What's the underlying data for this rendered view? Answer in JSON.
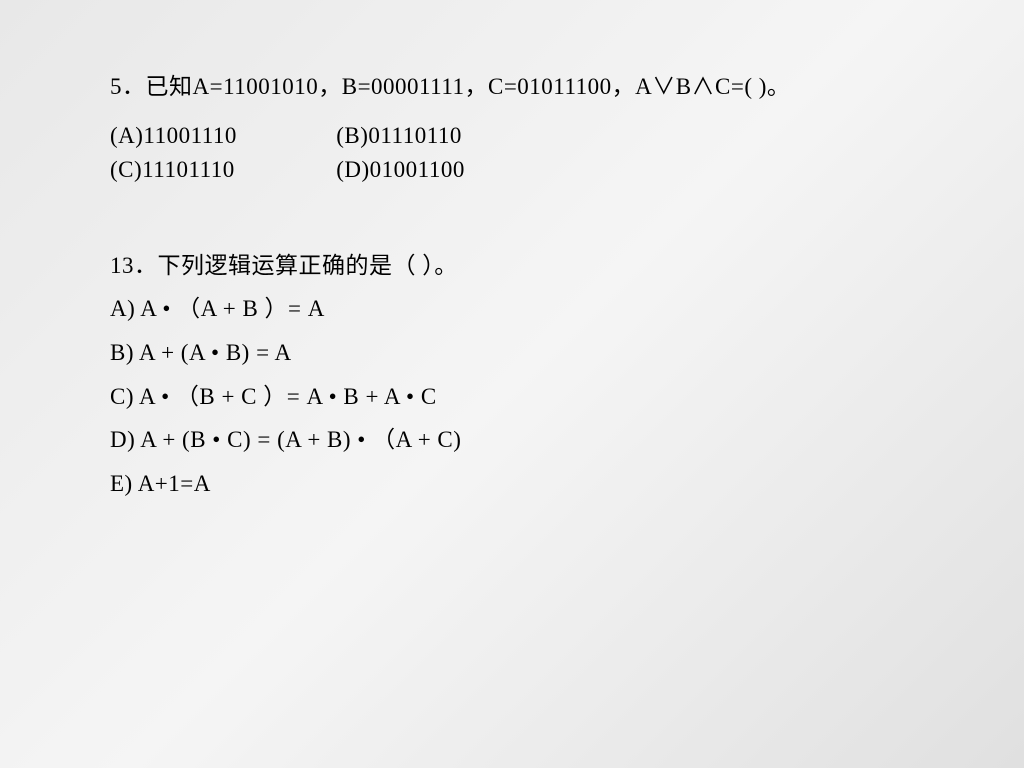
{
  "background": {
    "gradient_start": "#e8e8e8",
    "gradient_mid": "#f5f5f5",
    "gradient_end": "#e0e0e0"
  },
  "typography": {
    "font_family": "SimSun",
    "font_size_pt": 17,
    "color": "#000000",
    "line_height": 1.5
  },
  "q5": {
    "prompt": "5．已知A=11001010，B=00001111，C=01011100，A∨B∧C=(   )。",
    "options": {
      "A": "(A)11001110",
      "B": "(B)01110110",
      "C": "(C)11101110",
      "D": "(D)01001100"
    }
  },
  "q13": {
    "prompt": "13．下列逻辑运算正确的是（   ）。",
    "options": {
      "A": "A) A • （A + B ）= A",
      "B": "B) A + (A • B) = A",
      "C": "C) A • （B + C ）= A • B + A • C",
      "D": "D) A + (B • C) = (A + B) • （A + C)",
      "E": "E) A+1=A"
    }
  }
}
